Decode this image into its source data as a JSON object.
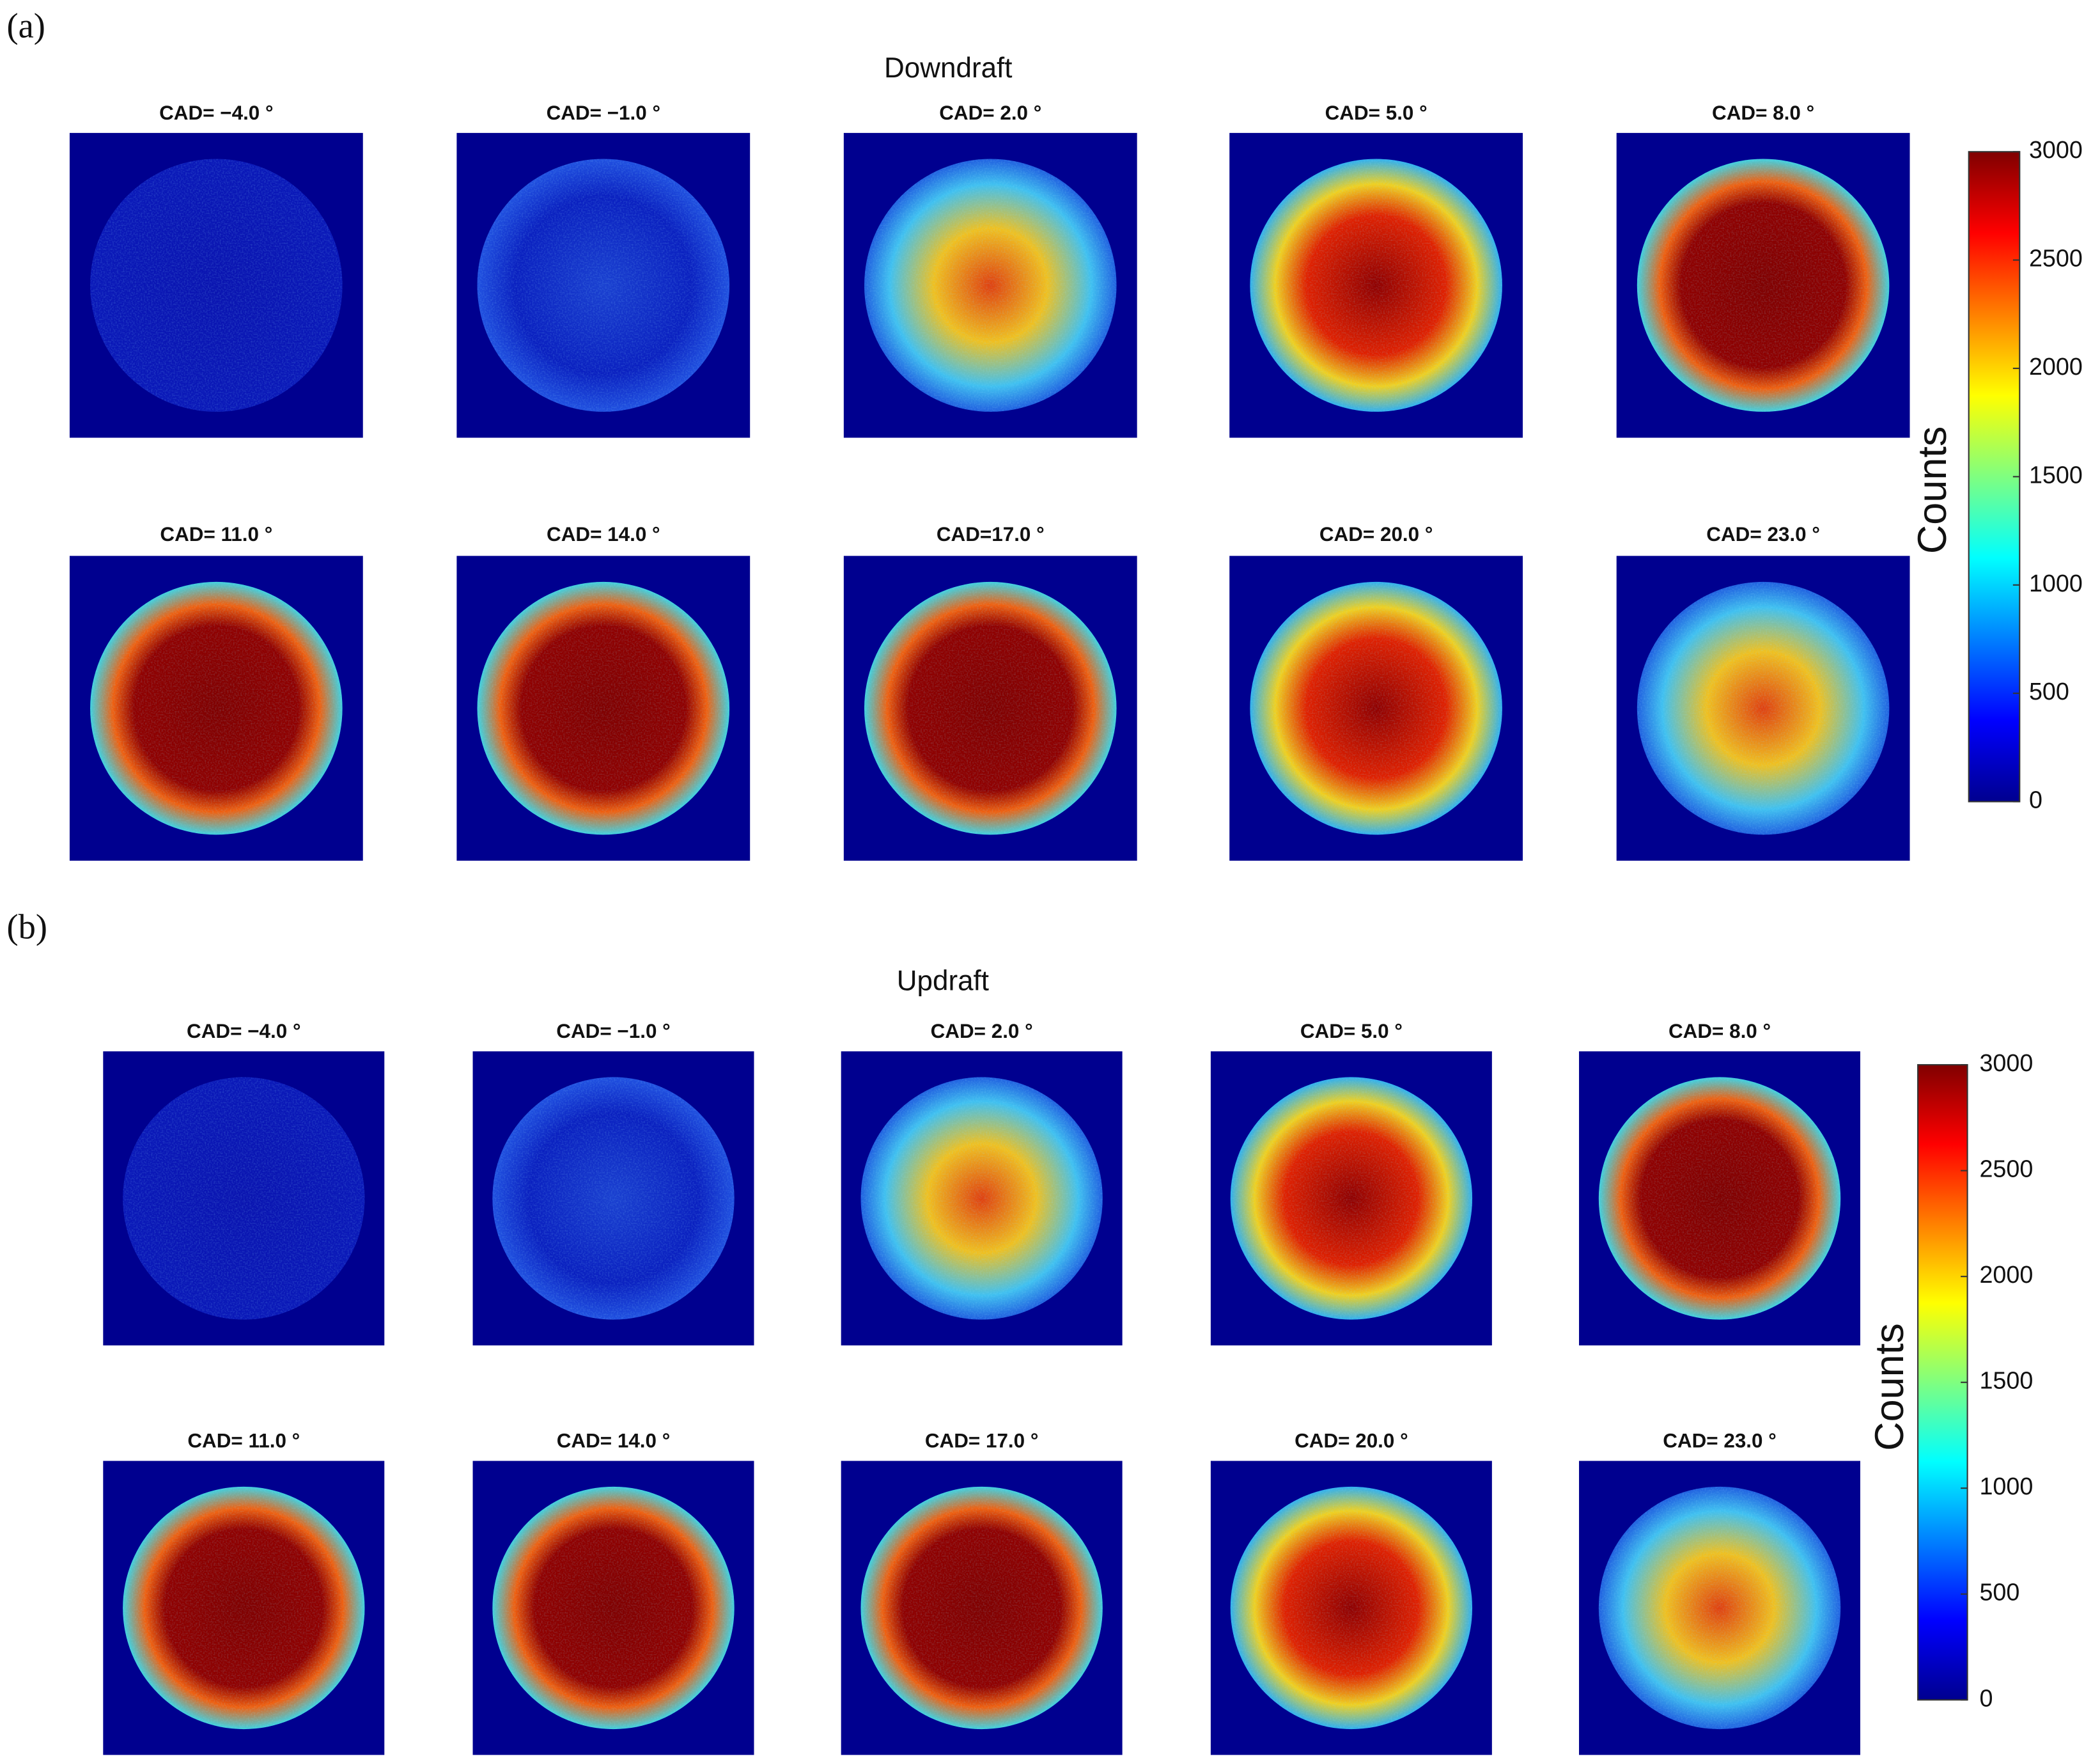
{
  "figures": [
    {
      "label": "(a)",
      "title": "Downdraft",
      "subplots": [
        "CAD= −4.0 °",
        "CAD= −1.0 °",
        "CAD= 2.0 °",
        "CAD= 5.0 °",
        "CAD= 8.0 °",
        "CAD= 11.0 °",
        "CAD= 14.0 °",
        "CAD=17.0 °",
        "CAD= 20.0 °",
        "CAD= 23.0 °"
      ],
      "colorbar": {
        "label": "Counts",
        "ticks": [
          0,
          500,
          1000,
          1500,
          2000,
          2500,
          3000
        ]
      }
    },
    {
      "label": "(b)",
      "title": "Updraft",
      "subplots": [
        "CAD= −4.0 °",
        "CAD= −1.0 °",
        "CAD= 2.0 °",
        "CAD= 5.0 °",
        "CAD= 8.0 °",
        "CAD= 11.0 °",
        "CAD= 14.0 °",
        "CAD= 17.0 °",
        "CAD= 20.0 °",
        "CAD= 23.0 °"
      ],
      "colorbar": {
        "label": "Counts",
        "ticks": [
          0,
          500,
          1000,
          1500,
          2000,
          2500,
          3000
        ]
      }
    }
  ]
}
